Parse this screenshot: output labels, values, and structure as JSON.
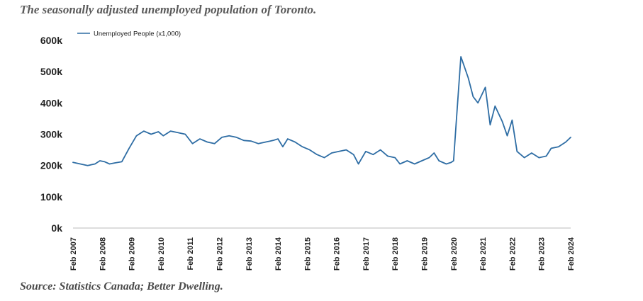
{
  "title": "The seasonally adjusted unemployed population of Toronto.",
  "source": "Source: Statistics Canada; Better Dwelling.",
  "chart_data": {
    "type": "line",
    "ylim": [
      0,
      600
    ],
    "yticks": [
      {
        "value": 0,
        "label": "0k"
      },
      {
        "value": 100,
        "label": "100k"
      },
      {
        "value": 200,
        "label": "200k"
      },
      {
        "value": 300,
        "label": "300k"
      },
      {
        "value": 400,
        "label": "400k"
      },
      {
        "value": 500,
        "label": "500k"
      },
      {
        "value": 600,
        "label": "600k"
      }
    ],
    "xlim": [
      "2007-02",
      "2024-02"
    ],
    "xticks": [
      {
        "value": "2007-02",
        "label": "Feb 2007"
      },
      {
        "value": "2008-02",
        "label": "Feb 2008"
      },
      {
        "value": "2009-02",
        "label": "Feb 2009"
      },
      {
        "value": "2010-02",
        "label": "Feb 2010"
      },
      {
        "value": "2011-02",
        "label": "Feb 2011"
      },
      {
        "value": "2012-02",
        "label": "Feb 2012"
      },
      {
        "value": "2013-02",
        "label": "Feb 2013"
      },
      {
        "value": "2014-02",
        "label": "Feb 2014"
      },
      {
        "value": "2015-02",
        "label": "Feb 2015"
      },
      {
        "value": "2016-02",
        "label": "Feb 2016"
      },
      {
        "value": "2017-02",
        "label": "Feb 2017"
      },
      {
        "value": "2018-02",
        "label": "Feb 2018"
      },
      {
        "value": "2019-02",
        "label": "Feb 2019"
      },
      {
        "value": "2020-02",
        "label": "Feb 2020"
      },
      {
        "value": "2021-02",
        "label": "Feb 2021"
      },
      {
        "value": "2022-02",
        "label": "Feb 2022"
      },
      {
        "value": "2023-02",
        "label": "Feb 2023"
      },
      {
        "value": "2024-02",
        "label": "Feb 2024"
      }
    ],
    "legend_position": "top-left",
    "grid": false,
    "series": [
      {
        "name": "Unemployed People (x1,000)",
        "color": "#2e6da4",
        "points": [
          [
            "2007-02",
            210
          ],
          [
            "2007-05",
            205
          ],
          [
            "2007-08",
            200
          ],
          [
            "2007-11",
            205
          ],
          [
            "2008-01",
            215
          ],
          [
            "2008-03",
            212
          ],
          [
            "2008-05",
            205
          ],
          [
            "2008-07",
            208
          ],
          [
            "2008-10",
            212
          ],
          [
            "2009-01",
            255
          ],
          [
            "2009-04",
            295
          ],
          [
            "2009-07",
            310
          ],
          [
            "2009-10",
            300
          ],
          [
            "2010-01",
            308
          ],
          [
            "2010-03",
            295
          ],
          [
            "2010-06",
            310
          ],
          [
            "2010-09",
            305
          ],
          [
            "2010-12",
            300
          ],
          [
            "2011-03",
            270
          ],
          [
            "2011-06",
            285
          ],
          [
            "2011-09",
            275
          ],
          [
            "2011-12",
            270
          ],
          [
            "2012-03",
            290
          ],
          [
            "2012-06",
            295
          ],
          [
            "2012-09",
            290
          ],
          [
            "2012-12",
            280
          ],
          [
            "2013-03",
            278
          ],
          [
            "2013-06",
            270
          ],
          [
            "2013-09",
            275
          ],
          [
            "2013-12",
            280
          ],
          [
            "2014-02",
            285
          ],
          [
            "2014-04",
            260
          ],
          [
            "2014-06",
            285
          ],
          [
            "2014-09",
            275
          ],
          [
            "2014-12",
            260
          ],
          [
            "2015-03",
            250
          ],
          [
            "2015-06",
            235
          ],
          [
            "2015-09",
            225
          ],
          [
            "2015-12",
            240
          ],
          [
            "2016-03",
            245
          ],
          [
            "2016-06",
            250
          ],
          [
            "2016-09",
            235
          ],
          [
            "2016-11",
            205
          ],
          [
            "2017-02",
            245
          ],
          [
            "2017-05",
            235
          ],
          [
            "2017-08",
            250
          ],
          [
            "2017-11",
            230
          ],
          [
            "2018-02",
            225
          ],
          [
            "2018-04",
            205
          ],
          [
            "2018-07",
            215
          ],
          [
            "2018-10",
            205
          ],
          [
            "2019-01",
            215
          ],
          [
            "2019-04",
            225
          ],
          [
            "2019-06",
            240
          ],
          [
            "2019-08",
            215
          ],
          [
            "2019-11",
            205
          ],
          [
            "2020-01",
            210
          ],
          [
            "2020-02",
            215
          ],
          [
            "2020-03",
            330
          ],
          [
            "2020-05",
            548
          ],
          [
            "2020-06",
            525
          ],
          [
            "2020-08",
            480
          ],
          [
            "2020-10",
            420
          ],
          [
            "2020-12",
            400
          ],
          [
            "2021-03",
            450
          ],
          [
            "2021-05",
            330
          ],
          [
            "2021-07",
            390
          ],
          [
            "2021-10",
            340
          ],
          [
            "2021-12",
            295
          ],
          [
            "2022-02",
            345
          ],
          [
            "2022-04",
            245
          ],
          [
            "2022-07",
            225
          ],
          [
            "2022-10",
            240
          ],
          [
            "2023-01",
            225
          ],
          [
            "2023-04",
            230
          ],
          [
            "2023-06",
            255
          ],
          [
            "2023-09",
            260
          ],
          [
            "2023-12",
            275
          ],
          [
            "2024-02",
            290
          ]
        ]
      }
    ]
  }
}
